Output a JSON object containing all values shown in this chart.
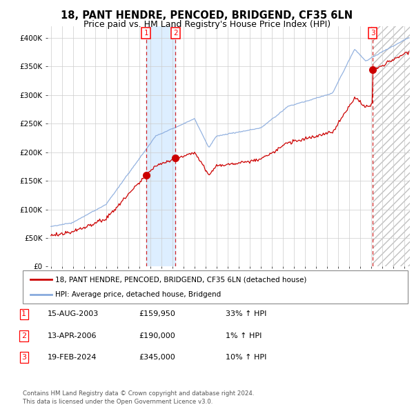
{
  "title": "18, PANT HENDRE, PENCOED, BRIDGEND, CF35 6LN",
  "subtitle": "Price paid vs. HM Land Registry's House Price Index (HPI)",
  "title_fontsize": 10.5,
  "subtitle_fontsize": 9,
  "ylim": [
    0,
    420000
  ],
  "yticks": [
    0,
    50000,
    100000,
    150000,
    200000,
    250000,
    300000,
    350000,
    400000
  ],
  "ytick_labels": [
    "£0",
    "£50K",
    "£100K",
    "£150K",
    "£200K",
    "£250K",
    "£300K",
    "£350K",
    "£400K"
  ],
  "xlim_start": 1994.7,
  "xlim_end": 2027.5,
  "sale_dates_num": [
    2003.617,
    2006.278,
    2024.13
  ],
  "sale_prices": [
    159950,
    190000,
    345000
  ],
  "sale_labels": [
    "1",
    "2",
    "3"
  ],
  "red_line_color": "#cc0000",
  "blue_line_color": "#88aadd",
  "shade_color": "#ddeeff",
  "legend_line1": "18, PANT HENDRE, PENCOED, BRIDGEND, CF35 6LN (detached house)",
  "legend_line2": "HPI: Average price, detached house, Bridgend",
  "table_data": [
    [
      "1",
      "15-AUG-2003",
      "£159,950",
      "33% ↑ HPI"
    ],
    [
      "2",
      "13-APR-2006",
      "£190,000",
      "1% ↑ HPI"
    ],
    [
      "3",
      "19-FEB-2024",
      "£345,000",
      "10% ↑ HPI"
    ]
  ],
  "footnote": "Contains HM Land Registry data © Crown copyright and database right 2024.\nThis data is licensed under the Open Government Licence v3.0.",
  "bg_color": "#ffffff",
  "grid_color": "#cccccc"
}
